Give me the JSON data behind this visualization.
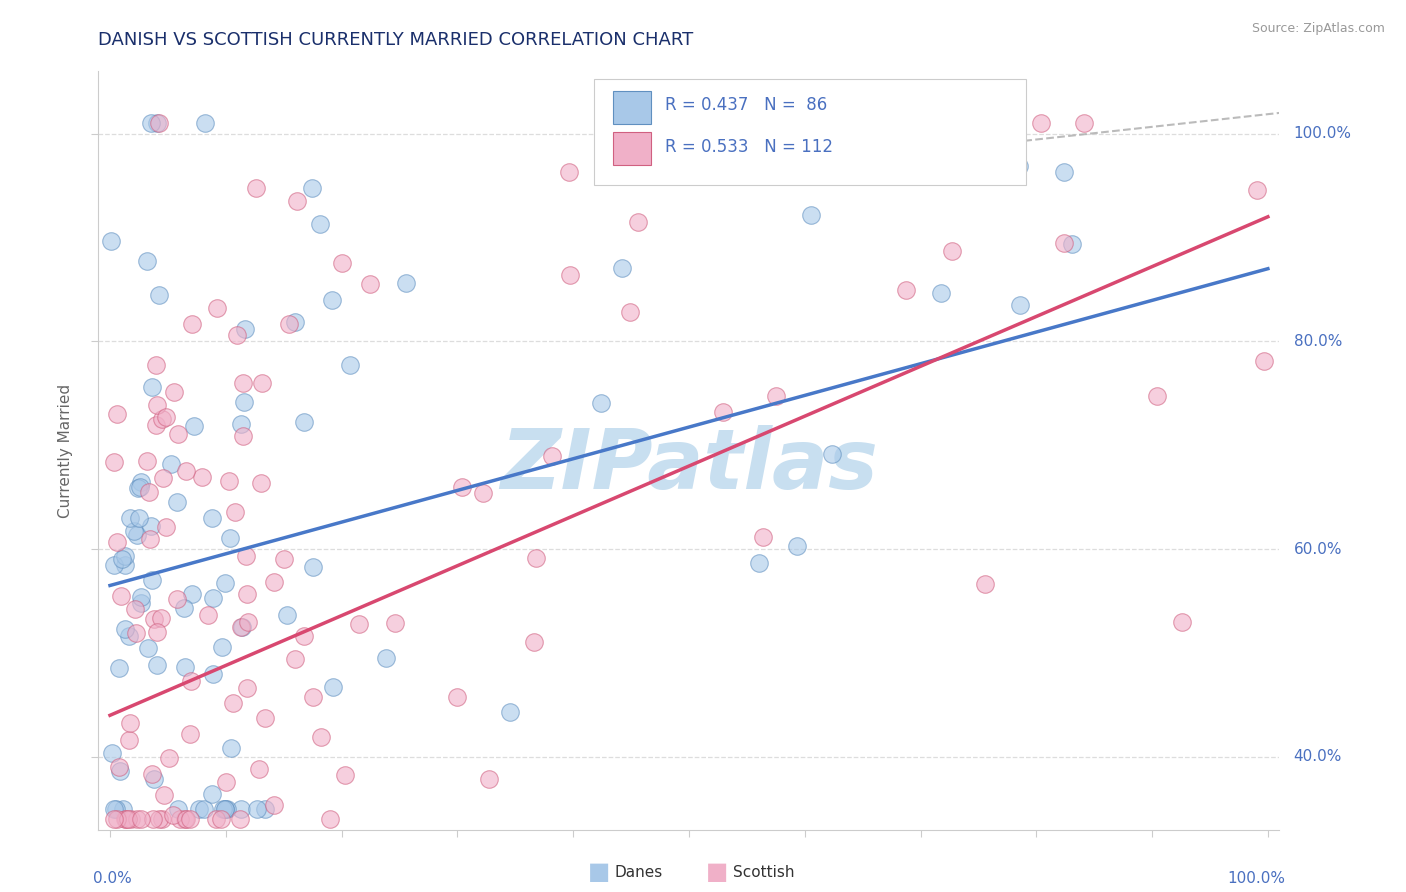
{
  "title": "DANISH VS SCOTTISH CURRENTLY MARRIED CORRELATION CHART",
  "source": "Source: ZipAtlas.com",
  "ylabel": "Currently Married",
  "danes_color": "#a8c8e8",
  "scottish_color": "#f0b0c8",
  "danes_edge_color": "#6090c0",
  "scottish_edge_color": "#d06080",
  "trend_danes_color": "#4878c8",
  "trend_scottish_color": "#d84870",
  "watermark_color": "#c8dff0",
  "background_color": "#ffffff",
  "title_color": "#1a2f6b",
  "axis_color": "#4a70c0",
  "source_color": "#999999",
  "danes_R": 0.437,
  "danes_N": 86,
  "scottish_R": 0.533,
  "scottish_N": 112,
  "xlim": [
    0.0,
    1.0
  ],
  "ylim": [
    0.33,
    1.06
  ],
  "y_ticks": [
    0.4,
    0.6,
    0.8,
    1.0
  ],
  "y_tick_labels": [
    "40.0%",
    "60.0%",
    "80.0%",
    "100.0%"
  ]
}
